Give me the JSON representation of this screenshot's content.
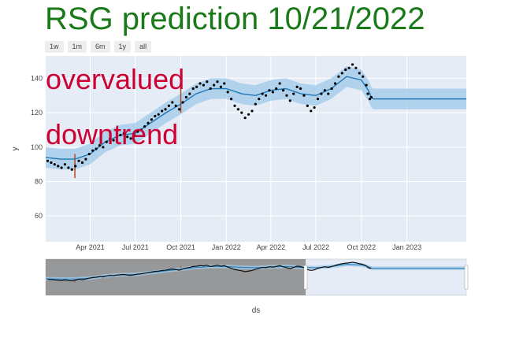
{
  "title": "RSG prediction 10/21/2022",
  "range_buttons": [
    "1w",
    "1m",
    "6m",
    "1y",
    "all"
  ],
  "annotations": [
    "overvalued",
    "downtrend"
  ],
  "colors": {
    "title": "#1a7a1a",
    "annotation": "#cc0033",
    "plot_bg": "#e5ecf6",
    "band": "#9ec9e8",
    "forecast": "#1f77b4",
    "points": "#000000",
    "changepoint": "#b5471d",
    "selector_shade": "#8a8a8a"
  },
  "chart_data": {
    "type": "line",
    "ylabel": "y",
    "xlabel": "ds",
    "ylim": [
      45,
      153
    ],
    "xlim": [
      "2021-01-01",
      "2023-05-01"
    ],
    "yticks": [
      60,
      80,
      100,
      120,
      140
    ],
    "xticks": [
      {
        "date": "2021-04-01",
        "label": "Apr 2021"
      },
      {
        "date": "2021-07-01",
        "label": "Jul 2021"
      },
      {
        "date": "2021-10-01",
        "label": "Oct 2021"
      },
      {
        "date": "2022-01-01",
        "label": "Jan 2022"
      },
      {
        "date": "2022-04-01",
        "label": "Apr 2022"
      },
      {
        "date": "2022-07-01",
        "label": "Jul 2022"
      },
      {
        "date": "2022-10-01",
        "label": "Oct 2022"
      },
      {
        "date": "2023-01-01",
        "label": "Jan 2023"
      }
    ],
    "grid": true,
    "series": [
      {
        "name": "",
        "kind": "forecast",
        "points": [
          [
            "2021-01-01",
            94
          ],
          [
            "2021-02-01",
            93
          ],
          [
            "2021-03-01",
            93
          ],
          [
            "2021-04-01",
            96
          ],
          [
            "2021-05-01",
            103
          ],
          [
            "2021-06-01",
            107
          ],
          [
            "2021-07-01",
            108
          ],
          [
            "2021-08-01",
            114
          ],
          [
            "2021-09-01",
            120
          ],
          [
            "2021-10-01",
            125
          ],
          [
            "2021-11-01",
            131
          ],
          [
            "2021-12-01",
            134
          ],
          [
            "2022-01-01",
            134
          ],
          [
            "2022-02-01",
            131
          ],
          [
            "2022-03-01",
            130
          ],
          [
            "2022-04-01",
            133
          ],
          [
            "2022-05-01",
            134
          ],
          [
            "2022-06-01",
            131
          ],
          [
            "2022-07-01",
            130
          ],
          [
            "2022-08-01",
            134
          ],
          [
            "2022-09-01",
            141
          ],
          [
            "2022-10-01",
            139
          ],
          [
            "2022-10-15",
            133
          ],
          [
            "2022-10-21",
            129
          ],
          [
            "2022-10-25",
            128
          ],
          [
            "2023-05-01",
            128
          ]
        ],
        "band_width": 6
      },
      {
        "name": "",
        "kind": "observed",
        "points": [
          [
            "2021-01-05",
            92
          ],
          [
            "2021-01-12",
            91
          ],
          [
            "2021-01-19",
            90
          ],
          [
            "2021-01-26",
            89
          ],
          [
            "2021-02-02",
            88
          ],
          [
            "2021-02-09",
            90
          ],
          [
            "2021-02-16",
            88
          ],
          [
            "2021-02-23",
            87
          ],
          [
            "2021-03-02",
            89
          ],
          [
            "2021-03-09",
            92
          ],
          [
            "2021-03-16",
            91
          ],
          [
            "2021-03-23",
            93
          ],
          [
            "2021-03-30",
            96
          ],
          [
            "2021-04-06",
            98
          ],
          [
            "2021-04-13",
            99
          ],
          [
            "2021-04-20",
            101
          ],
          [
            "2021-04-27",
            100
          ],
          [
            "2021-05-04",
            103
          ],
          [
            "2021-05-11",
            105
          ],
          [
            "2021-05-18",
            104
          ],
          [
            "2021-05-25",
            106
          ],
          [
            "2021-06-01",
            107
          ],
          [
            "2021-06-08",
            108
          ],
          [
            "2021-06-15",
            106
          ],
          [
            "2021-06-22",
            105
          ],
          [
            "2021-06-29",
            107
          ],
          [
            "2021-07-06",
            109
          ],
          [
            "2021-07-13",
            110
          ],
          [
            "2021-07-20",
            112
          ],
          [
            "2021-07-27",
            114
          ],
          [
            "2021-08-03",
            116
          ],
          [
            "2021-08-10",
            118
          ],
          [
            "2021-08-17",
            119
          ],
          [
            "2021-08-24",
            121
          ],
          [
            "2021-08-31",
            122
          ],
          [
            "2021-09-07",
            124
          ],
          [
            "2021-09-14",
            126
          ],
          [
            "2021-09-21",
            124
          ],
          [
            "2021-09-28",
            122
          ],
          [
            "2021-10-05",
            126
          ],
          [
            "2021-10-12",
            129
          ],
          [
            "2021-10-19",
            131
          ],
          [
            "2021-10-26",
            134
          ],
          [
            "2021-11-02",
            135
          ],
          [
            "2021-11-09",
            137
          ],
          [
            "2021-11-16",
            136
          ],
          [
            "2021-11-23",
            138
          ],
          [
            "2021-11-30",
            134
          ],
          [
            "2021-12-07",
            136
          ],
          [
            "2021-12-14",
            138
          ],
          [
            "2021-12-21",
            135
          ],
          [
            "2021-12-28",
            137
          ],
          [
            "2022-01-04",
            132
          ],
          [
            "2022-01-11",
            128
          ],
          [
            "2022-01-18",
            124
          ],
          [
            "2022-01-25",
            122
          ],
          [
            "2022-02-01",
            120
          ],
          [
            "2022-02-08",
            117
          ],
          [
            "2022-02-15",
            119
          ],
          [
            "2022-02-22",
            121
          ],
          [
            "2022-03-01",
            125
          ],
          [
            "2022-03-08",
            128
          ],
          [
            "2022-03-15",
            131
          ],
          [
            "2022-03-22",
            130
          ],
          [
            "2022-03-29",
            133
          ],
          [
            "2022-04-05",
            132
          ],
          [
            "2022-04-12",
            134
          ],
          [
            "2022-04-19",
            137
          ],
          [
            "2022-04-26",
            133
          ],
          [
            "2022-05-03",
            130
          ],
          [
            "2022-05-10",
            127
          ],
          [
            "2022-05-17",
            131
          ],
          [
            "2022-05-24",
            135
          ],
          [
            "2022-05-31",
            134
          ],
          [
            "2022-06-07",
            130
          ],
          [
            "2022-06-14",
            124
          ],
          [
            "2022-06-21",
            121
          ],
          [
            "2022-06-28",
            123
          ],
          [
            "2022-07-05",
            128
          ],
          [
            "2022-07-12",
            131
          ],
          [
            "2022-07-19",
            133
          ],
          [
            "2022-07-26",
            131
          ],
          [
            "2022-08-02",
            134
          ],
          [
            "2022-08-09",
            137
          ],
          [
            "2022-08-16",
            141
          ],
          [
            "2022-08-23",
            143
          ],
          [
            "2022-08-30",
            145
          ],
          [
            "2022-09-06",
            146
          ],
          [
            "2022-09-13",
            148
          ],
          [
            "2022-09-20",
            146
          ],
          [
            "2022-09-27",
            143
          ],
          [
            "2022-10-04",
            141
          ],
          [
            "2022-10-11",
            136
          ],
          [
            "2022-10-14",
            131
          ],
          [
            "2022-10-18",
            128
          ],
          [
            "2022-10-21",
            129
          ]
        ]
      }
    ],
    "changepoints": [
      {
        "date": "2021-03-01",
        "y0": 82,
        "y1": 96
      },
      {
        "date": "2021-10-01",
        "y0": 120,
        "y1": 136
      }
    ]
  }
}
